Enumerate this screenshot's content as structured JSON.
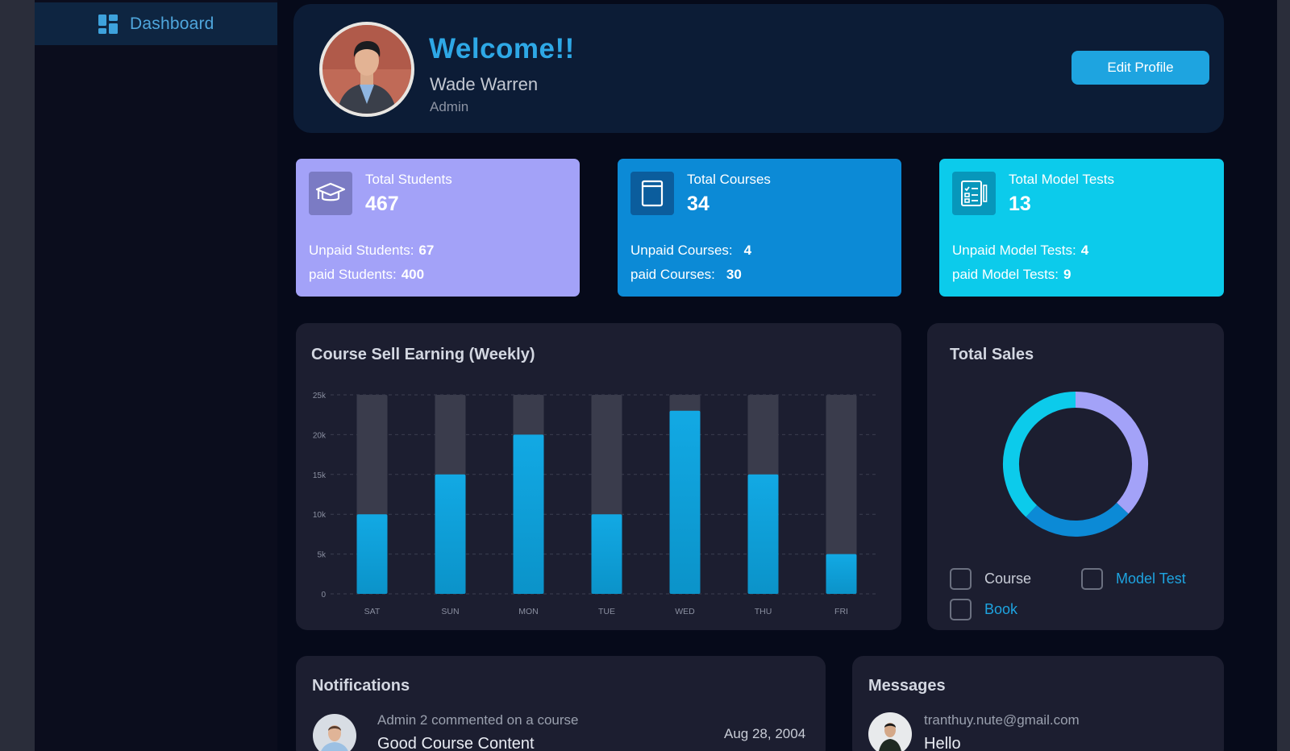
{
  "sidebar": {
    "items": [
      {
        "label": "Dashboard",
        "icon": "dashboard-grid-icon",
        "active": true
      }
    ]
  },
  "welcome": {
    "title": "Welcome!!",
    "name": "Wade Warren",
    "role": "Admin",
    "edit_label": "Edit Profile"
  },
  "stats": [
    {
      "title": "Total Students",
      "value": "467",
      "icon": "graduation-cap-icon",
      "line1_label": "Unpaid Students:",
      "line1_value": "67",
      "line2_label": "paid Students:",
      "line2_value": "400",
      "color": "#a3a2f8"
    },
    {
      "title": "Total Courses",
      "value": "34",
      "icon": "book-icon",
      "line1_label": "Unpaid Courses:",
      "line1_value": "4",
      "line2_label": "paid Courses:",
      "line2_value": "30",
      "color": "#0c8ad6"
    },
    {
      "title": "Total Model Tests",
      "value": "13",
      "icon": "test-checklist-icon",
      "line1_label": "Unpaid Model Tests:",
      "line1_value": "4",
      "line2_label": "paid Model Tests:",
      "line2_value": "9",
      "color": "#0ccbeb"
    }
  ],
  "earning": {
    "title": "Course Sell Earning (Weekly)"
  },
  "sales": {
    "title": "Total Sales",
    "legend": [
      {
        "label": "Course",
        "color": "#c8ccd6"
      },
      {
        "label": "Model Test",
        "color": "#1ea4e0"
      },
      {
        "label": "Book",
        "color": "#1ea4e0"
      }
    ]
  },
  "chart_data": [
    {
      "type": "bar",
      "title": "Course Sell Earning (Weekly)",
      "categories": [
        "SAT",
        "SUN",
        "MON",
        "TUE",
        "WED",
        "THU",
        "FRI"
      ],
      "values": [
        10000,
        15000,
        20000,
        10000,
        23000,
        15000,
        5000
      ],
      "y_ticks": [
        "0",
        "5k",
        "10k",
        "15k",
        "20k",
        "25k"
      ],
      "ylim": [
        0,
        25000
      ],
      "background_bars": true,
      "grid": true,
      "colors": {
        "bar": "#11a6dd",
        "track": "#3a3c4c"
      }
    },
    {
      "type": "pie",
      "title": "Total Sales",
      "style": "donut",
      "series": [
        {
          "name": "Course",
          "value": 37,
          "color": "#a3a2f8"
        },
        {
          "name": "Model Test",
          "value": 25,
          "color": "#0c8ad6"
        },
        {
          "name": "Book",
          "value": 38,
          "color": "#0ccbeb"
        }
      ]
    }
  ],
  "notifications": {
    "title": "Notifications",
    "items": [
      {
        "subtitle": "Admin 2 commented on a course",
        "text": "Good Course Content",
        "date": "Aug 28, 2004"
      }
    ]
  },
  "messages": {
    "title": "Messages",
    "items": [
      {
        "sender": "tranthuy.nute@gmail.com",
        "text": "Hello"
      }
    ]
  }
}
